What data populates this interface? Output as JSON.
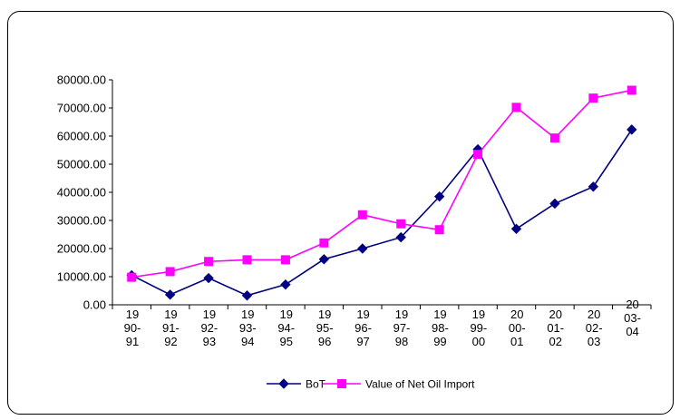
{
  "chart_data": {
    "type": "line",
    "title": "",
    "xlabel": "",
    "ylabel": "",
    "categories": [
      [
        "19",
        "90-",
        "91"
      ],
      [
        "19",
        "91-",
        "92"
      ],
      [
        "19",
        "92-",
        "93"
      ],
      [
        "19",
        "93-",
        "94"
      ],
      [
        "19",
        "94-",
        "95"
      ],
      [
        "19",
        "95-",
        "96"
      ],
      [
        "19",
        "96-",
        "97"
      ],
      [
        "19",
        "97-",
        "98"
      ],
      [
        "19",
        "98-",
        "99"
      ],
      [
        "19",
        "99-",
        "00"
      ],
      [
        "20",
        "00-",
        "01"
      ],
      [
        "20",
        "01-",
        "02"
      ],
      [
        "20",
        "02-",
        "03"
      ],
      [
        "20",
        "03-",
        "04"
      ]
    ],
    "ylim": [
      0,
      80000
    ],
    "yticks": [
      "0.00",
      "10000.00",
      "20000.00",
      "30000.00",
      "40000.00",
      "50000.00",
      "60000.00",
      "70000.00",
      "80000.00"
    ],
    "grid": false,
    "legend_position": "bottom",
    "series": [
      {
        "name": "BoT",
        "color": "#000080",
        "marker": "diamond",
        "values": [
          10500,
          3600,
          9500,
          3300,
          7200,
          16200,
          20000,
          24000,
          38500,
          55300,
          27000,
          36000,
          42000,
          62300
        ]
      },
      {
        "name": "Value of Net Oil Import",
        "color": "#FF00FF",
        "marker": "square",
        "values": [
          9800,
          11800,
          15400,
          16000,
          16000,
          22000,
          32000,
          28800,
          26700,
          53500,
          70200,
          59300,
          73500,
          76300
        ]
      }
    ]
  }
}
